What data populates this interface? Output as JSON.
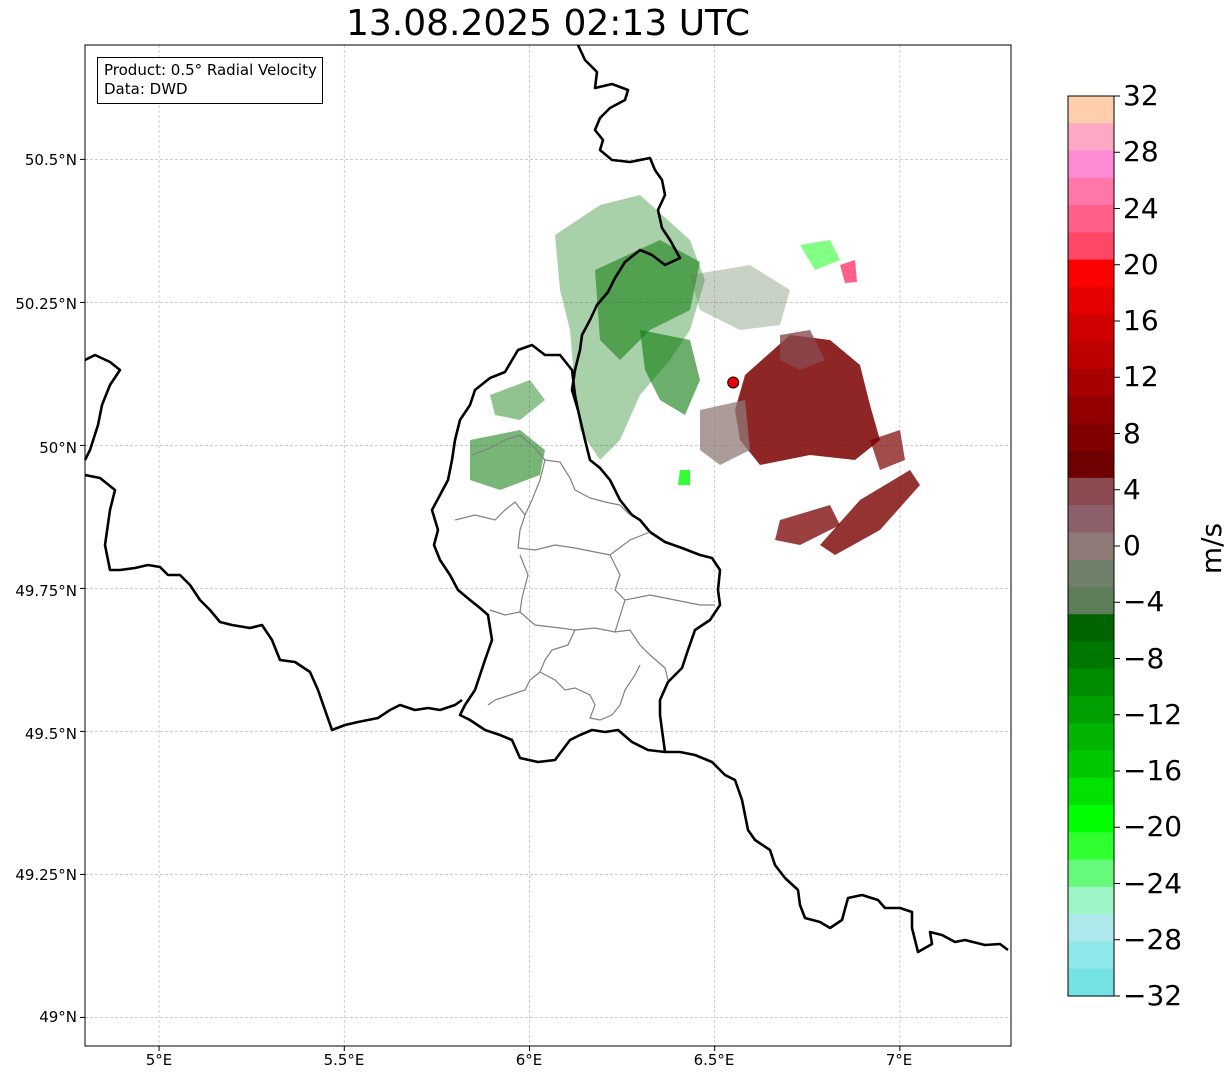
{
  "title": "13.08.2025 02:13 UTC",
  "info": {
    "product": "Product: 0.5° Radial Velocity",
    "source": "Data: DWD"
  },
  "axes": {
    "lon_range": [
      4.8,
      7.3
    ],
    "lat_range": [
      48.95,
      50.7
    ],
    "lat_ticks": [
      "50.5°N",
      "50.25°N",
      "50°N",
      "49.75°N",
      "49.5°N",
      "49.25°N",
      "49°N"
    ],
    "lon_ticks": [
      "5°E",
      "5.5°E",
      "6°E",
      "6.5°E",
      "7°E"
    ],
    "grid": true
  },
  "radar_site": {
    "name": "radar-site",
    "lon": 6.55,
    "lat": 50.11,
    "color": "#e8000b"
  },
  "colorbar": {
    "label": "m/s",
    "min": -32,
    "max": 32,
    "ticks": [
      "32",
      "28",
      "24",
      "20",
      "16",
      "12",
      "8",
      "4",
      "0",
      "−4",
      "−8",
      "−12",
      "−16",
      "−20",
      "−24",
      "−28",
      "−32"
    ],
    "colors_top_to_bottom": [
      "#ffcfac",
      "#ffa8c5",
      "#ff8ad5",
      "#ff77a8",
      "#ff5f88",
      "#ff4666",
      "#ff0000",
      "#e50000",
      "#d10000",
      "#bd0000",
      "#a80000",
      "#940000",
      "#800000",
      "#6e0000",
      "#8a4a50",
      "#8d5f6a",
      "#8f7a77",
      "#707f6a",
      "#5e7e5a",
      "#006400",
      "#007800",
      "#008c00",
      "#00a000",
      "#00b400",
      "#00c800",
      "#00e100",
      "#00ff00",
      "#30ff30",
      "#66f97c",
      "#9ef5c6",
      "#aee8ec",
      "#8fe8ea",
      "#75e2e6"
    ]
  },
  "colors": {
    "border": "#000000",
    "admin": "#808080",
    "grid": "#bbbbbb",
    "approaching": "#0a7a0a",
    "receding": "#7a0000"
  }
}
